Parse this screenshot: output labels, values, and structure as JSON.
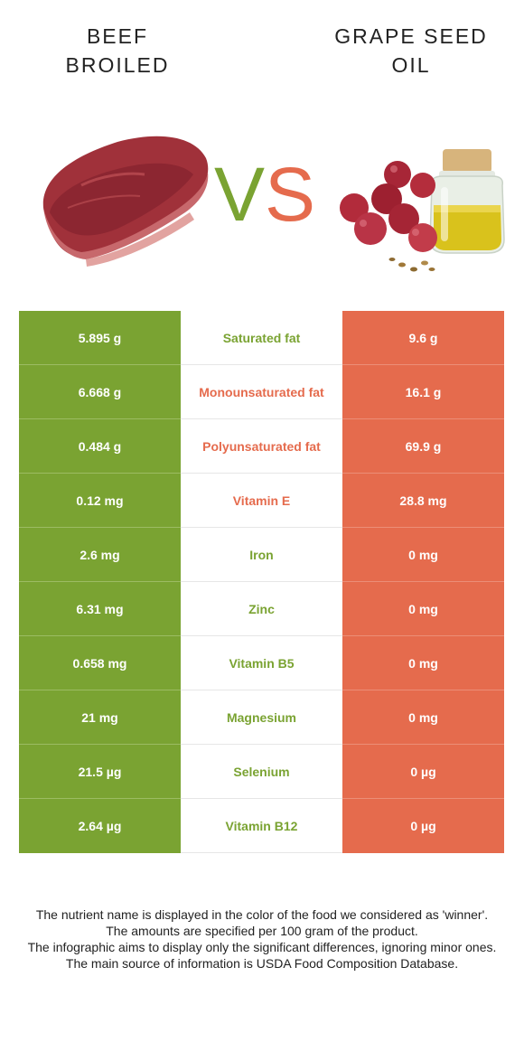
{
  "header": {
    "left_title_line1": "BEEF",
    "left_title_line2": "BROILED",
    "right_title_line1": "GRAPE SEED",
    "right_title_line2": "OIL",
    "vs_v": "V",
    "vs_s": "S"
  },
  "images": {
    "left": "beef-steak-image",
    "right": "grapes-and-oil-jar-image"
  },
  "colors": {
    "winner_a": "#7aa332",
    "winner_b": "#e56b4d"
  },
  "rows": [
    {
      "a": "5.895 g",
      "nutrient": "Saturated fat",
      "b": "9.6 g",
      "winner": "a"
    },
    {
      "a": "6.668 g",
      "nutrient": "Monounsaturated fat",
      "b": "16.1 g",
      "winner": "b"
    },
    {
      "a": "0.484 g",
      "nutrient": "Polyunsaturated fat",
      "b": "69.9 g",
      "winner": "b"
    },
    {
      "a": "0.12 mg",
      "nutrient": "Vitamin E",
      "b": "28.8 mg",
      "winner": "b"
    },
    {
      "a": "2.6 mg",
      "nutrient": "Iron",
      "b": "0 mg",
      "winner": "a"
    },
    {
      "a": "6.31 mg",
      "nutrient": "Zinc",
      "b": "0 mg",
      "winner": "a"
    },
    {
      "a": "0.658 mg",
      "nutrient": "Vitamin B5",
      "b": "0 mg",
      "winner": "a"
    },
    {
      "a": "21 mg",
      "nutrient": "Magnesium",
      "b": "0 mg",
      "winner": "a"
    },
    {
      "a": "21.5 µg",
      "nutrient": "Selenium",
      "b": "0 µg",
      "winner": "a"
    },
    {
      "a": "2.64 µg",
      "nutrient": "Vitamin B12",
      "b": "0 µg",
      "winner": "a"
    }
  ],
  "footer": {
    "line1": "The nutrient name is displayed in the color of the food we considered as 'winner'.",
    "line2": "The amounts are specified per 100 gram of the product.",
    "line3": "The infographic aims to display only the significant differences, ignoring minor ones.",
    "line4": "The main source of information is USDA Food Composition Database."
  }
}
